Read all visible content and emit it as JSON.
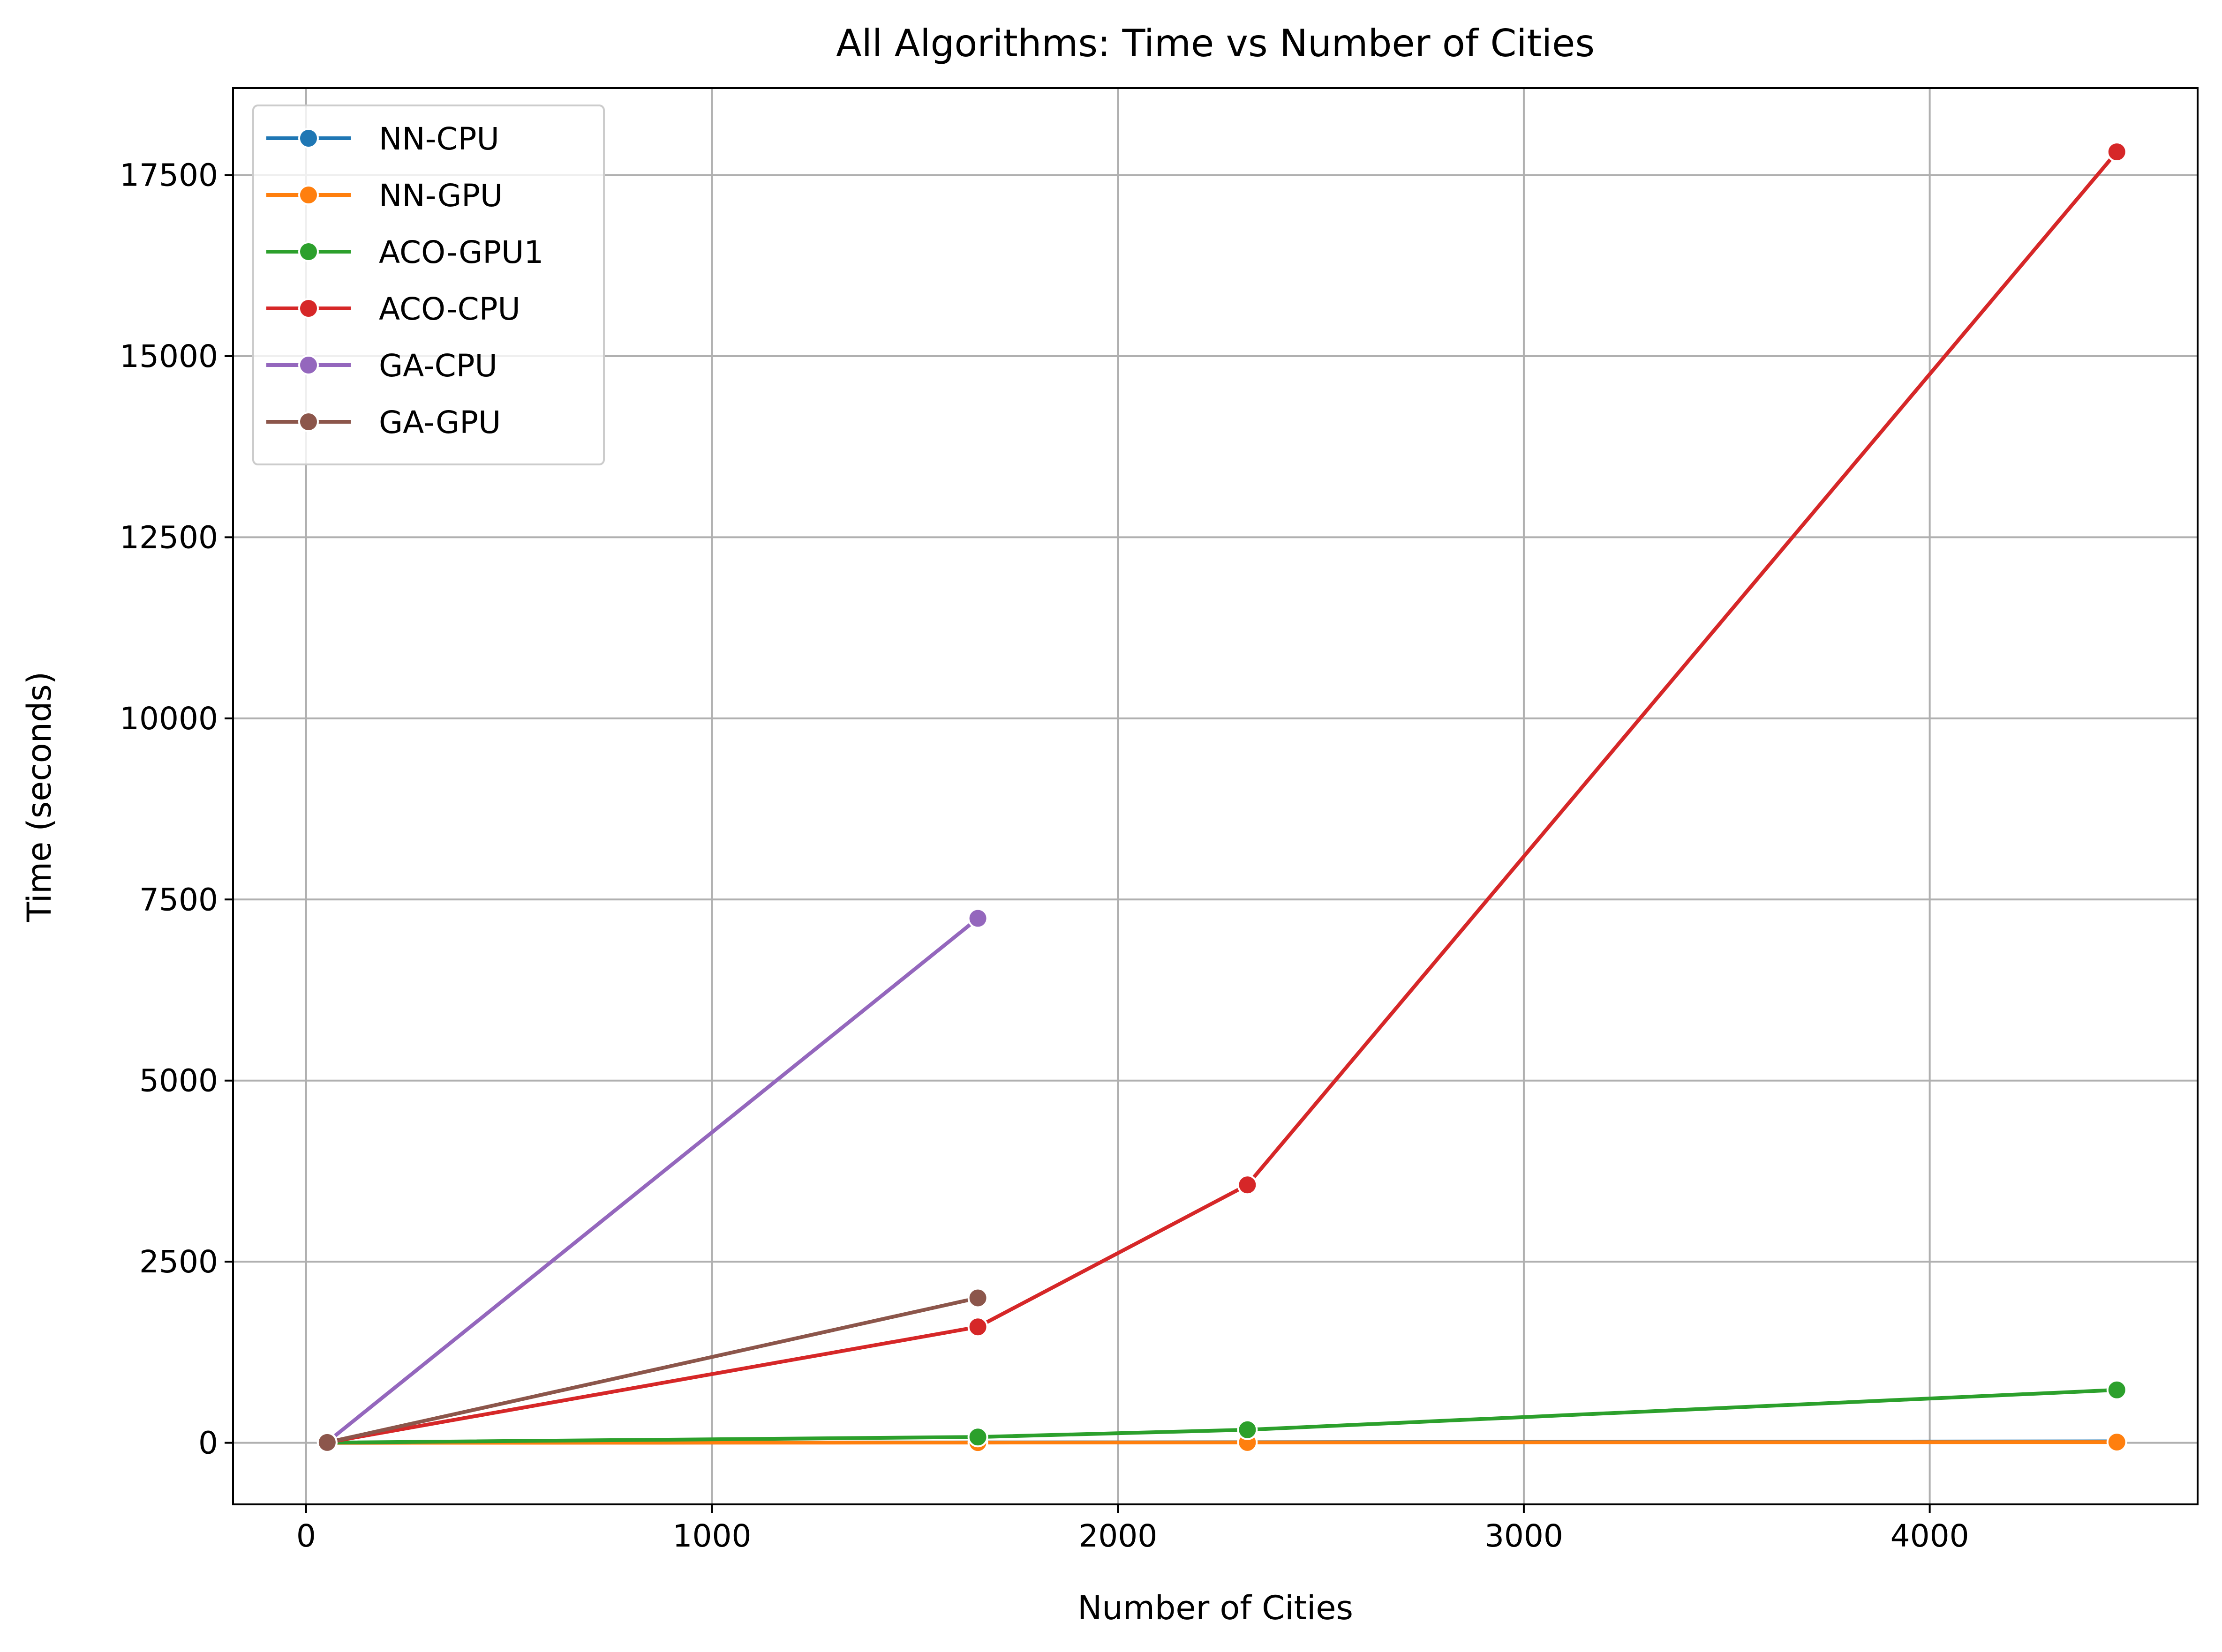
{
  "chart_data": {
    "type": "line",
    "title": "All Algorithms: Time vs Number of Cities",
    "xlabel": "Number of Cities",
    "ylabel": "Time (seconds)",
    "xlim": [
      -180,
      4660
    ],
    "ylim": [
      -850,
      18700
    ],
    "xticks": [
      0,
      1000,
      2000,
      3000,
      4000
    ],
    "xtick_labels": [
      "0",
      "1000",
      "2000",
      "3000",
      "4000"
    ],
    "yticks": [
      0,
      2500,
      5000,
      7500,
      10000,
      12500,
      15000,
      17500
    ],
    "ytick_labels": [
      "0",
      "2500",
      "5000",
      "7500",
      "10000",
      "12500",
      "15000",
      "17500"
    ],
    "grid": true,
    "legend_position": "upper-left",
    "series": [
      {
        "name": "NN-CPU",
        "color": "#1f77b4",
        "x": [
          52,
          1655,
          2319,
          4461
        ],
        "y": [
          0,
          5,
          8,
          20
        ]
      },
      {
        "name": "NN-GPU",
        "color": "#ff7f0e",
        "x": [
          52,
          1655,
          2319,
          4461
        ],
        "y": [
          0,
          3,
          5,
          10
        ]
      },
      {
        "name": "ACO-GPU1",
        "color": "#2ca02c",
        "x": [
          52,
          1655,
          2319,
          4461
        ],
        "y": [
          2,
          80,
          180,
          730
        ]
      },
      {
        "name": "ACO-CPU",
        "color": "#d62728",
        "x": [
          52,
          1655,
          2319,
          4461
        ],
        "y": [
          5,
          1600,
          3560,
          17820
        ]
      },
      {
        "name": "GA-CPU",
        "color": "#9467bd",
        "x": [
          52,
          1655
        ],
        "y": [
          10,
          7240
        ]
      },
      {
        "name": "GA-GPU",
        "color": "#8c564b",
        "x": [
          52,
          1655
        ],
        "y": [
          5,
          2000
        ]
      }
    ]
  }
}
